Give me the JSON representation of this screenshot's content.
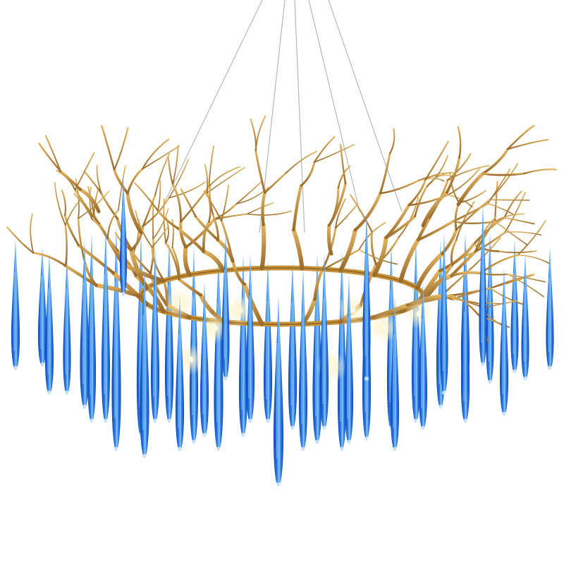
{
  "image": {
    "subject": "chandelier",
    "colors": {
      "background": "#ffffff",
      "crystal_deep": "#0a3fb0",
      "crystal_mid": "#1e6fe0",
      "crystal_light": "#7fc4ff",
      "branch_gold": "#c8953a",
      "branch_shadow": "#7a5220",
      "bulb_glow": "#fff3c8",
      "cable": "#b8b8b8"
    }
  }
}
